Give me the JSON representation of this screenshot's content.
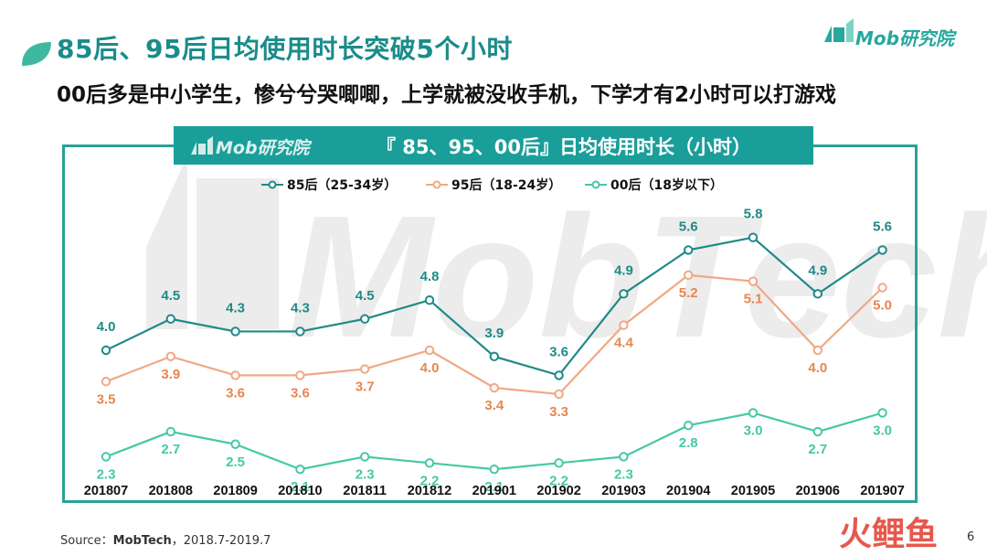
{
  "header": {
    "title": "85后、95后日均使用时长突破5个小时",
    "subtitle": "00后多是中小学生，惨兮兮哭唧唧，上学就被没收手机，下学才有2小时可以打游戏",
    "brand": "Mob研究院"
  },
  "chart_header": {
    "brand": "Mob研究院",
    "title": "『 85、95、00后』日均使用时长（小时）"
  },
  "watermark": "MobTech",
  "footer": {
    "source_label": "Source：",
    "source_name": "MobTech",
    "source_range": "，2018.7-2019.7",
    "page": "6",
    "corner_mark": "火鲤鱼"
  },
  "colors": {
    "teal_dark": "#1a8c8a",
    "series_85": "#1f8a86",
    "series_95": "#f0a883",
    "series_95_label": "#e8864e",
    "series_00": "#45c8a6",
    "frame": "#2aa198"
  },
  "chart_data": {
    "type": "line",
    "title": "『 85、95、00后』日均使用时长（小时）",
    "categories": [
      "201807",
      "201808",
      "201809",
      "201810",
      "201811",
      "201812",
      "201901",
      "201902",
      "201903",
      "201904",
      "201905",
      "201906",
      "201907"
    ],
    "legend_position": "top",
    "grid": false,
    "series": [
      {
        "name": "85后（25-34岁）",
        "values": [
          4.0,
          4.5,
          4.3,
          4.3,
          4.5,
          4.8,
          3.9,
          3.6,
          4.9,
          5.6,
          5.8,
          4.9,
          5.6
        ]
      },
      {
        "name": "95后（18-24岁）",
        "values": [
          3.5,
          3.9,
          3.6,
          3.6,
          3.7,
          4.0,
          3.4,
          3.3,
          4.4,
          5.2,
          5.1,
          4.0,
          5.0
        ]
      },
      {
        "name": "00后（18岁以下）",
        "values": [
          2.3,
          2.7,
          2.5,
          2.1,
          2.3,
          2.2,
          2.1,
          2.2,
          2.3,
          2.8,
          3.0,
          2.7,
          3.0
        ]
      }
    ]
  }
}
